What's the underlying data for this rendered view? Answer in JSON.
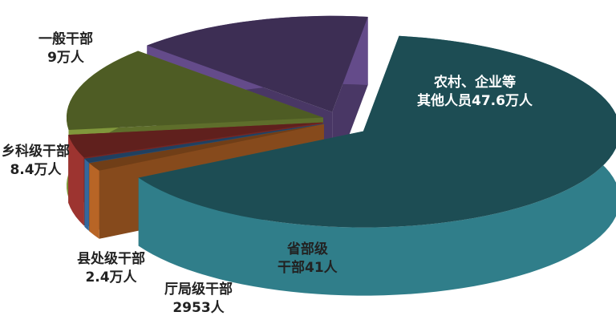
{
  "chart_data": {
    "type": "pie",
    "style": "3d-exploded",
    "slices": [
      {
        "name": "农村、企业等其他人员",
        "label_line1": "农村、企业等",
        "label_line2": "其他人员47.6万人",
        "value": 476000,
        "color": "#3a9aa8"
      },
      {
        "name": "省部级干部",
        "label_line1": "省部级",
        "label_line2": "干部41人",
        "value": 41,
        "color": "#e07b2e"
      },
      {
        "name": "厅局级干部",
        "label_line1": "厅局级干部",
        "label_line2": "2953人",
        "value": 2953,
        "color": "#3f7fbf"
      },
      {
        "name": "县处级干部",
        "label_line1": "县处级干部",
        "label_line2": "2.4万人",
        "value": 24000,
        "color": "#c0403a"
      },
      {
        "name": "乡科级干部",
        "label_line1": "乡科级干部",
        "label_line2": "8.4万人",
        "value": 84000,
        "color": "#9cb848"
      },
      {
        "name": "一般干部",
        "label_line1": "一般干部",
        "label_line2": "9万人",
        "value": 90000,
        "color": "#7a5ca8"
      }
    ]
  }
}
